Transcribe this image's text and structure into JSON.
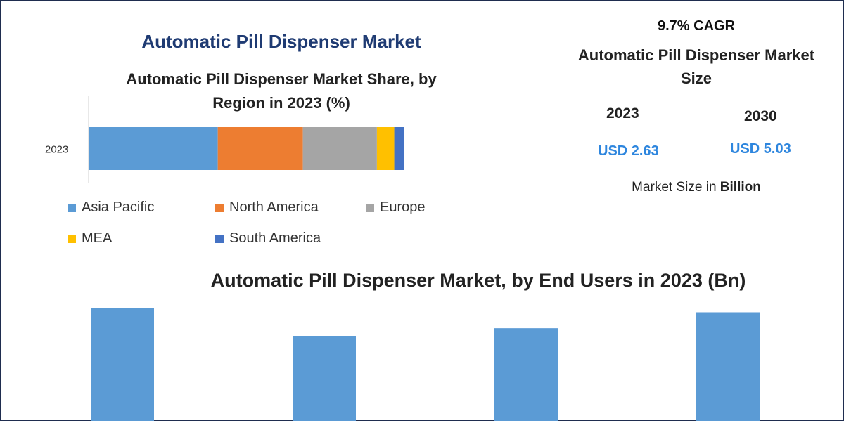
{
  "main_title": "Automatic Pill Dispenser Market",
  "region_chart_title": "Automatic Pill Dispenser Market Share, by Region in 2023 (%)",
  "cagr": "9.7% CAGR",
  "size_title": "Automatic Pill Dispenser Market Size",
  "size": {
    "year_a": "2023",
    "value_a": "USD 2.63",
    "year_b": "2030",
    "value_b": "USD 5.03",
    "unit_prefix": "Market Size in",
    "unit_bold": "Billion"
  },
  "enduser_title": "Automatic Pill Dispenser Market, by End Users in 2023 (Bn)",
  "colors": {
    "asia_pacific": "#5b9bd5",
    "north_america": "#ed7d31",
    "europe": "#a5a5a5",
    "mea": "#ffc000",
    "south_america": "#4472c4",
    "title_blue": "#1f3b73",
    "value_blue": "#2e86de"
  },
  "chart_data": [
    {
      "type": "bar",
      "orientation": "horizontal-stacked",
      "categories": [
        "2023"
      ],
      "series": [
        {
          "name": "Asia Pacific",
          "values": [
            41
          ],
          "color": "#5b9bd5"
        },
        {
          "name": "North America",
          "values": [
            27
          ],
          "color": "#ed7d31"
        },
        {
          "name": "Europe",
          "values": [
            23.5
          ],
          "color": "#a5a5a5"
        },
        {
          "name": "MEA",
          "values": [
            5.5
          ],
          "color": "#ffc000"
        },
        {
          "name": "South America",
          "values": [
            3
          ],
          "color": "#4472c4"
        }
      ],
      "xlim": [
        0,
        100
      ],
      "legend": "bottom",
      "grid": false
    },
    {
      "type": "bar",
      "categories": [
        "",
        "",
        "",
        ""
      ],
      "values": [
        1.0,
        0.75,
        0.82,
        0.96
      ],
      "color": "#5b9bd5",
      "grid": false,
      "note": "axis cropped; values are relative"
    }
  ]
}
